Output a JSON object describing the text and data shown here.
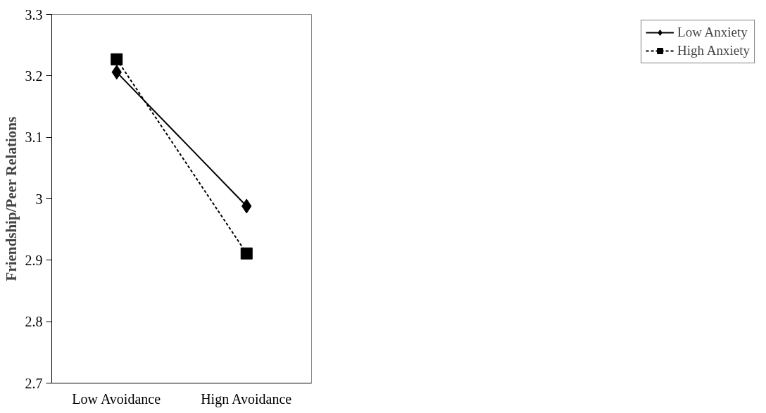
{
  "chart_data": {
    "type": "line",
    "ylabel": "Friendship/Peer Relations",
    "categories": [
      "Low Avoidance",
      "Hign Avoidance"
    ],
    "series": [
      {
        "name": "Low Anxiety",
        "color": "#000000",
        "values": [
          3.206,
          2.988
        ],
        "marker": "diamond",
        "line_style": "solid"
      },
      {
        "name": "High Anxiety",
        "color": "#000000",
        "values": [
          3.227,
          2.911
        ],
        "marker": "square",
        "line_style": "dashed"
      }
    ],
    "ylim": [
      2.7,
      3.3
    ],
    "yticks": [
      2.7,
      2.8,
      2.9,
      3,
      3.1,
      3.2,
      3.3
    ],
    "grid": false,
    "legend": "right"
  }
}
